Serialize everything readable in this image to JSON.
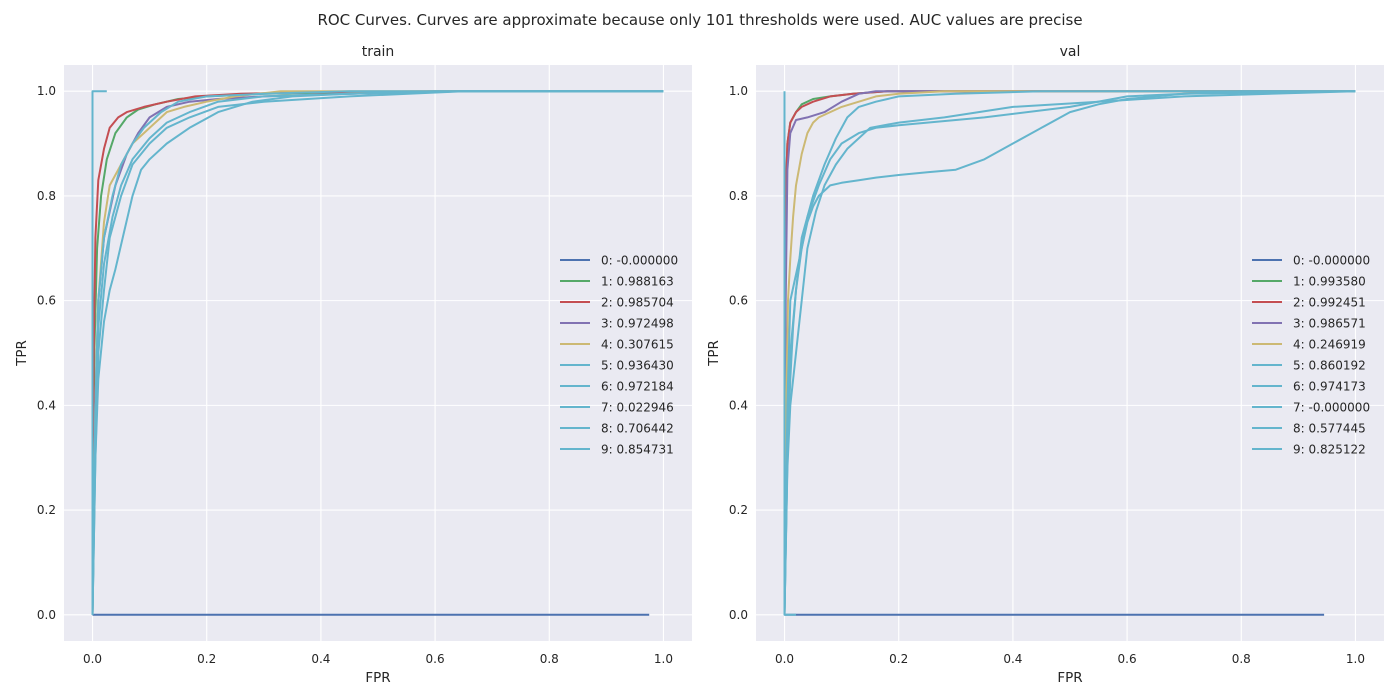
{
  "figure": {
    "suptitle": "ROC Curves. Curves are approximate because only 101 thresholds were used. AUC values are precise"
  },
  "colors": {
    "background": "#eaeaf2",
    "grid": "#ffffff",
    "c0": "#4c72b0",
    "c1": "#55a868",
    "c2": "#c44e52",
    "c3": "#8172b2",
    "c4": "#ccb974",
    "c5": "#64b5cd"
  },
  "chart_data": [
    {
      "type": "line",
      "title": "train",
      "xlabel": "FPR",
      "ylabel": "TPR",
      "xlim": [
        -0.05,
        1.05
      ],
      "ylim": [
        -0.05,
        1.05
      ],
      "xticks": [
        "0.0",
        "0.2",
        "0.4",
        "0.6",
        "0.8",
        "1.0"
      ],
      "yticks": [
        "0.0",
        "0.2",
        "0.4",
        "0.6",
        "0.8",
        "1.0"
      ],
      "grid": true,
      "legend_placement": "center-right",
      "series": [
        {
          "name": "0: -0.000000",
          "color": "#4c72b0",
          "x": [
            0,
            0.975
          ],
          "y": [
            0,
            0
          ]
        },
        {
          "name": "1: 0.988163",
          "color": "#55a868",
          "x": [
            0,
            0.003,
            0.008,
            0.015,
            0.025,
            0.04,
            0.06,
            0.08,
            0.11,
            0.15,
            0.2,
            0.3,
            0.45,
            0.65,
            1.0
          ],
          "y": [
            0,
            0.5,
            0.7,
            0.8,
            0.87,
            0.92,
            0.95,
            0.965,
            0.975,
            0.985,
            0.99,
            0.995,
            0.998,
            1.0,
            1.0
          ]
        },
        {
          "name": "2: 0.985704",
          "color": "#c44e52",
          "x": [
            0,
            0.002,
            0.005,
            0.01,
            0.02,
            0.03,
            0.045,
            0.06,
            0.09,
            0.13,
            0.18,
            0.26,
            0.4,
            0.6,
            1.0
          ],
          "y": [
            0,
            0.5,
            0.72,
            0.83,
            0.89,
            0.93,
            0.95,
            0.96,
            0.97,
            0.98,
            0.99,
            0.995,
            0.998,
            1.0,
            1.0
          ]
        },
        {
          "name": "3: 0.972498",
          "color": "#8172b2",
          "x": [
            0,
            0.005,
            0.01,
            0.02,
            0.04,
            0.06,
            0.08,
            0.1,
            0.13,
            0.17,
            0.22,
            0.3,
            0.45,
            0.65,
            1.0
          ],
          "y": [
            0,
            0.4,
            0.6,
            0.72,
            0.82,
            0.88,
            0.92,
            0.95,
            0.97,
            0.98,
            0.985,
            0.99,
            0.995,
            1.0,
            1.0
          ]
        },
        {
          "name": "4: 0.307615",
          "color": "#ccb974",
          "x": [
            0,
            0.005,
            0.01,
            0.02,
            0.03,
            0.05,
            0.07,
            0.09,
            0.11,
            0.13,
            0.16,
            0.2,
            0.25,
            0.33,
            0.5,
            1.0
          ],
          "y": [
            0,
            0.4,
            0.6,
            0.75,
            0.82,
            0.86,
            0.9,
            0.92,
            0.94,
            0.96,
            0.97,
            0.98,
            0.99,
            1.0,
            1.0,
            1.0
          ]
        },
        {
          "name": "5: 0.936430",
          "color": "#64b5cd",
          "x": [
            0,
            0.005,
            0.01,
            0.02,
            0.03,
            0.05,
            0.07,
            0.1,
            0.13,
            0.17,
            0.22,
            0.3,
            0.45,
            0.65,
            1.0
          ],
          "y": [
            0,
            0.3,
            0.5,
            0.62,
            0.72,
            0.8,
            0.86,
            0.9,
            0.93,
            0.95,
            0.97,
            0.98,
            0.99,
            1.0,
            1.0
          ]
        },
        {
          "name": "6: 0.972184",
          "color": "#64b5cd",
          "x": [
            0,
            0.005,
            0.01,
            0.02,
            0.035,
            0.05,
            0.07,
            0.09,
            0.12,
            0.15,
            0.2,
            0.3,
            0.45,
            0.65,
            1.0
          ],
          "y": [
            0,
            0.4,
            0.6,
            0.72,
            0.8,
            0.86,
            0.9,
            0.93,
            0.96,
            0.98,
            0.99,
            0.995,
            1.0,
            1.0,
            1.0
          ]
        },
        {
          "name": "7: 0.022946",
          "color": "#64b5cd",
          "x": [
            0,
            0,
            0.025
          ],
          "y": [
            0,
            1.0,
            1.0
          ]
        },
        {
          "name": "8: 0.706442",
          "color": "#64b5cd",
          "x": [
            0,
            0.005,
            0.01,
            0.02,
            0.03,
            0.04,
            0.055,
            0.07,
            0.085,
            0.1,
            0.13,
            0.17,
            0.22,
            0.28,
            0.35,
            0.45,
            0.6,
            1.0
          ],
          "y": [
            0,
            0.3,
            0.45,
            0.56,
            0.62,
            0.66,
            0.73,
            0.8,
            0.85,
            0.87,
            0.9,
            0.93,
            0.96,
            0.98,
            0.99,
            0.995,
            1.0,
            1.0
          ]
        },
        {
          "name": "9: 0.854731",
          "color": "#64b5cd",
          "x": [
            0,
            0.005,
            0.01,
            0.02,
            0.035,
            0.05,
            0.07,
            0.1,
            0.13,
            0.17,
            0.22,
            0.3,
            0.45,
            0.65,
            1.0
          ],
          "y": [
            0,
            0.35,
            0.55,
            0.67,
            0.76,
            0.82,
            0.87,
            0.91,
            0.94,
            0.96,
            0.98,
            0.99,
            0.995,
            1.0,
            1.0
          ]
        }
      ]
    },
    {
      "type": "line",
      "title": "val",
      "xlabel": "FPR",
      "ylabel": "TPR",
      "xlim": [
        -0.05,
        1.05
      ],
      "ylim": [
        -0.05,
        1.05
      ],
      "xticks": [
        "0.0",
        "0.2",
        "0.4",
        "0.6",
        "0.8",
        "1.0"
      ],
      "yticks": [
        "0.0",
        "0.2",
        "0.4",
        "0.6",
        "0.8",
        "1.0"
      ],
      "grid": true,
      "legend_placement": "center-right",
      "series": [
        {
          "name": "0: -0.000000",
          "color": "#4c72b0",
          "x": [
            0,
            0.945
          ],
          "y": [
            0,
            0
          ]
        },
        {
          "name": "1: 0.993580",
          "color": "#55a868",
          "x": [
            0,
            0.002,
            0.005,
            0.01,
            0.02,
            0.03,
            0.05,
            0.08,
            0.12,
            0.18,
            0.3,
            0.5,
            1.0
          ],
          "y": [
            0,
            0.8,
            0.9,
            0.94,
            0.96,
            0.975,
            0.985,
            0.99,
            0.995,
            1.0,
            1.0,
            1.0,
            1.0
          ]
        },
        {
          "name": "2: 0.992451",
          "color": "#c44e52",
          "x": [
            0,
            0.002,
            0.005,
            0.01,
            0.02,
            0.03,
            0.05,
            0.08,
            0.12,
            0.18,
            0.3,
            0.5,
            1.0
          ],
          "y": [
            0,
            0.8,
            0.9,
            0.94,
            0.96,
            0.97,
            0.98,
            0.99,
            0.995,
            1.0,
            1.0,
            1.0,
            1.0
          ]
        },
        {
          "name": "3: 0.986571",
          "color": "#8172b2",
          "x": [
            0,
            0.002,
            0.005,
            0.01,
            0.02,
            0.04,
            0.07,
            0.1,
            0.13,
            0.16,
            0.3,
            0.5,
            1.0
          ],
          "y": [
            0,
            0.6,
            0.85,
            0.92,
            0.945,
            0.95,
            0.96,
            0.98,
            0.995,
            1.0,
            1.0,
            1.0,
            1.0
          ]
        },
        {
          "name": "4: 0.246919",
          "color": "#ccb974",
          "x": [
            0,
            0.003,
            0.006,
            0.01,
            0.015,
            0.02,
            0.03,
            0.04,
            0.05,
            0.06,
            0.08,
            0.1,
            0.13,
            0.16,
            0.2,
            0.28,
            0.5,
            1.0
          ],
          "y": [
            0,
            0.4,
            0.6,
            0.68,
            0.76,
            0.82,
            0.88,
            0.92,
            0.94,
            0.95,
            0.96,
            0.97,
            0.98,
            0.99,
            0.995,
            1.0,
            1.0,
            1.0
          ]
        },
        {
          "name": "5: 0.860192",
          "color": "#64b5cd",
          "x": [
            0,
            0.005,
            0.01,
            0.02,
            0.03,
            0.04,
            0.055,
            0.07,
            0.09,
            0.11,
            0.13,
            0.15,
            0.2,
            0.28,
            0.4,
            0.55,
            0.7,
            1.0
          ],
          "y": [
            0,
            0.28,
            0.4,
            0.5,
            0.6,
            0.7,
            0.77,
            0.82,
            0.86,
            0.89,
            0.91,
            0.93,
            0.94,
            0.95,
            0.97,
            0.98,
            0.99,
            1.0
          ]
        },
        {
          "name": "6: 0.974173",
          "color": "#64b5cd",
          "x": [
            0,
            0.005,
            0.01,
            0.02,
            0.03,
            0.05,
            0.07,
            0.09,
            0.11,
            0.13,
            0.16,
            0.2,
            0.3,
            0.45,
            0.65,
            1.0
          ],
          "y": [
            0,
            0.3,
            0.5,
            0.62,
            0.72,
            0.8,
            0.86,
            0.91,
            0.95,
            0.97,
            0.98,
            0.99,
            0.995,
            1.0,
            1.0,
            1.0
          ]
        },
        {
          "name": "7: -0.000000",
          "color": "#64b5cd",
          "x": [
            0,
            0,
            0.02
          ],
          "y": [
            1.0,
            0,
            0
          ]
        },
        {
          "name": "8: 0.577445",
          "color": "#64b5cd",
          "x": [
            0,
            0.005,
            0.01,
            0.015,
            0.02,
            0.03,
            0.04,
            0.05,
            0.06,
            0.08,
            0.1,
            0.13,
            0.16,
            0.2,
            0.25,
            0.3,
            0.35,
            0.4,
            0.45,
            0.5,
            0.55,
            0.6,
            0.65,
            0.7,
            1.0
          ],
          "y": [
            0,
            0.3,
            0.45,
            0.55,
            0.62,
            0.7,
            0.75,
            0.78,
            0.8,
            0.82,
            0.825,
            0.83,
            0.835,
            0.84,
            0.845,
            0.85,
            0.87,
            0.9,
            0.93,
            0.96,
            0.975,
            0.985,
            0.99,
            0.995,
            1.0
          ]
        },
        {
          "name": "9: 0.825122",
          "color": "#64b5cd",
          "x": [
            0,
            0.005,
            0.01,
            0.02,
            0.03,
            0.04,
            0.06,
            0.08,
            0.1,
            0.13,
            0.16,
            0.2,
            0.25,
            0.35,
            0.5,
            0.6,
            0.8,
            1.0
          ],
          "y": [
            0,
            0.4,
            0.6,
            0.65,
            0.7,
            0.76,
            0.82,
            0.87,
            0.9,
            0.92,
            0.93,
            0.935,
            0.94,
            0.95,
            0.97,
            0.99,
            1.0,
            1.0
          ]
        }
      ]
    }
  ]
}
